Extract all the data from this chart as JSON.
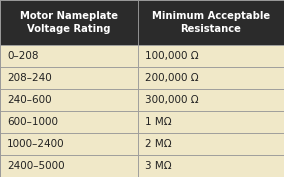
{
  "header_col1": "Motor Nameplate\nVoltage Rating",
  "header_col2": "Minimum Acceptable\nResistance",
  "rows": [
    [
      "0–208",
      "100,000 Ω"
    ],
    [
      "208–240",
      "200,000 Ω"
    ],
    [
      "240–600",
      "300,000 Ω"
    ],
    [
      "600–1000",
      "1 MΩ"
    ],
    [
      "1000–2400",
      "2 MΩ"
    ],
    [
      "2400–5000",
      "3 MΩ"
    ]
  ],
  "header_bg": "#2b2b2b",
  "header_fg": "#ffffff",
  "row_bg": "#f0e8c8",
  "row_fg": "#222222",
  "border_color": "#999999",
  "col_split": 0.485,
  "header_fontsize": 7.2,
  "row_fontsize": 7.5,
  "fig_w": 2.84,
  "fig_h": 1.77,
  "dpi": 100
}
